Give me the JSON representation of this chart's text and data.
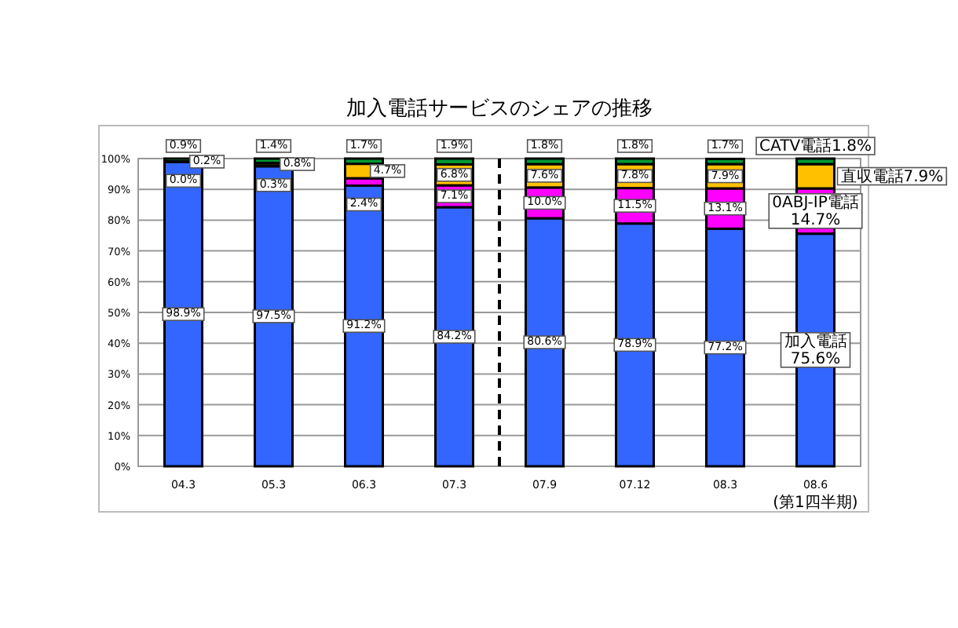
{
  "chart_data": {
    "type": "bar",
    "stacked": true,
    "title": "加入電話サービスのシェアの推移",
    "categories": [
      "04.3",
      "05.3",
      "06.3",
      "07.3",
      "07.9",
      "07.12",
      "08.3",
      "08.6 (第1四半期)"
    ],
    "ylim": [
      0,
      100
    ],
    "yticks": [
      {
        "value": 0,
        "label": "0%"
      },
      {
        "value": 10,
        "label": "10%"
      },
      {
        "value": 20,
        "label": "20%"
      },
      {
        "value": 30,
        "label": "30%"
      },
      {
        "value": 40,
        "label": "40%"
      },
      {
        "value": 50,
        "label": "50%"
      },
      {
        "value": 60,
        "label": "60%"
      },
      {
        "value": 70,
        "label": "70%"
      },
      {
        "value": 80,
        "label": "80%"
      },
      {
        "value": 90,
        "label": "90%"
      },
      {
        "value": 100,
        "label": "100%"
      }
    ],
    "grid": "y",
    "series": [
      {
        "name": "加入電話",
        "color": "#3366ff",
        "values": [
          98.9,
          97.5,
          91.2,
          84.2,
          80.6,
          78.9,
          77.2,
          75.6
        ],
        "value_labels": [
          "98.9%",
          "97.5%",
          "91.2%",
          "84.2%",
          "80.6%",
          "78.9%",
          "77.2%",
          "75.6%"
        ]
      },
      {
        "name": "0ABJ-IP電話",
        "color": "#ff00ff",
        "values": [
          0.0,
          0.3,
          2.4,
          7.1,
          10.0,
          11.5,
          13.1,
          14.7
        ],
        "value_labels": [
          "0.0%",
          "0.3%",
          "2.4%",
          "7.1%",
          "10.0%",
          "11.5%",
          "13.1%",
          "14.7%"
        ]
      },
      {
        "name": "直収電話",
        "color": "#ffc000",
        "values": [
          0.2,
          0.8,
          4.7,
          6.8,
          7.6,
          7.8,
          7.9,
          7.9
        ],
        "value_labels": [
          "0.2%",
          "0.8%",
          "4.7%",
          "6.8%",
          "7.6%",
          "7.8%",
          "7.9%",
          "7.9%"
        ]
      },
      {
        "name": "CATV電話",
        "color": "#009933",
        "values": [
          0.9,
          1.4,
          1.7,
          1.9,
          1.8,
          1.8,
          1.7,
          1.8
        ],
        "value_labels": [
          "0.9%",
          "1.4%",
          "1.7%",
          "1.9%",
          "1.8%",
          "1.8%",
          "1.7%",
          "1.8%"
        ]
      }
    ]
  }
}
